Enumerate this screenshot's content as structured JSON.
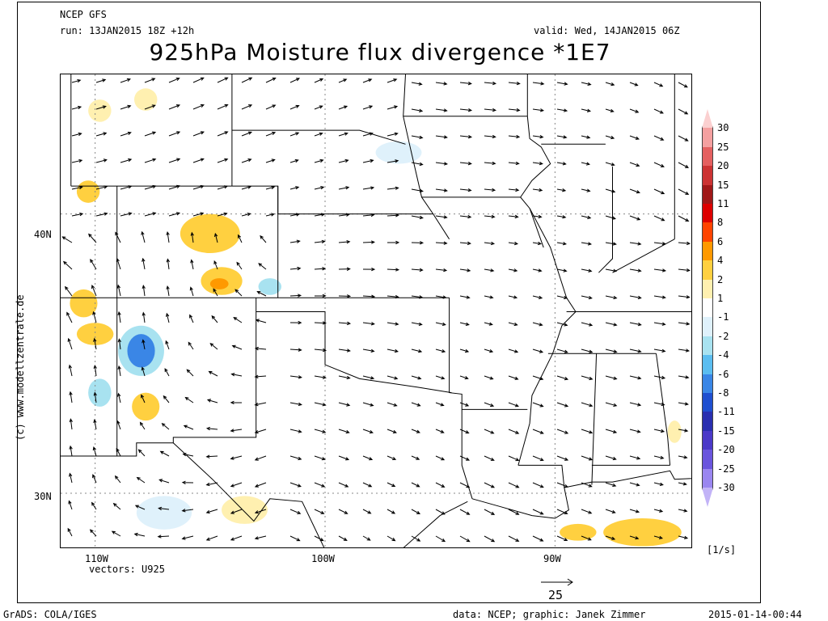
{
  "header": {
    "model": "NCEP GFS",
    "run": "run: 13JAN2015 18Z +12h",
    "valid": "valid: Wed, 14JAN2015 06Z",
    "title": "925hPa Moisture flux divergence *1E7"
  },
  "credit": "(c) www.modellzentrale.de",
  "axes": {
    "lon_labels": [
      "110W",
      "100W",
      "90W"
    ],
    "lat_labels": [
      "40N",
      "30N"
    ]
  },
  "vectors_label": "vectors: U925",
  "reference_vector": "25",
  "units": "[1/s]",
  "colorbar": {
    "labels": [
      "30",
      "25",
      "20",
      "15",
      "11",
      "8",
      "6",
      "4",
      "2",
      "1",
      "-1",
      "-2",
      "-4",
      "-6",
      "-8",
      "-11",
      "-15",
      "-20",
      "-25",
      "-30"
    ],
    "colors": [
      "#fbd0d0",
      "#f4a0a0",
      "#e46060",
      "#cc3333",
      "#a01818",
      "#dd0000",
      "#ff4400",
      "#ff9900",
      "#ffd040",
      "#fff0b0",
      "#ffffff",
      "#dff1fb",
      "#a8e2f0",
      "#5bbdf0",
      "#3a86e6",
      "#1f4fd0",
      "#2a2fb0",
      "#4b39c8",
      "#6a55dd",
      "#9a86f0",
      "#c2b3f7"
    ]
  },
  "footer": {
    "left": "GrADS: COLA/IGES",
    "center": "data: NCEP; graphic: Janek Zimmer",
    "right": "2015-01-14-00:44"
  },
  "map": {
    "projection_extent": {
      "lon_min": -111.5,
      "lon_max": -84.0,
      "lat_min": 28.0,
      "lat_max": 45.0
    },
    "grid_lon": [
      -110,
      -100,
      -90
    ],
    "grid_lat": [
      30,
      40
    ],
    "divergence_blobs": [
      {
        "lon": -105.0,
        "lat": 39.3,
        "rx": 1.3,
        "ry": 0.7,
        "color": "#ffd040"
      },
      {
        "lon": -104.5,
        "lat": 37.6,
        "rx": 0.9,
        "ry": 0.5,
        "color": "#ffd040"
      },
      {
        "lon": -104.6,
        "lat": 37.5,
        "rx": 0.4,
        "ry": 0.2,
        "color": "#ff9900"
      },
      {
        "lon": -108.0,
        "lat": 35.1,
        "rx": 0.6,
        "ry": 0.6,
        "color": "#3a86e6"
      },
      {
        "lon": -108.0,
        "lat": 35.1,
        "rx": 1.0,
        "ry": 0.9,
        "color": "#a8e2f0"
      },
      {
        "lon": -107.8,
        "lat": 33.1,
        "rx": 0.6,
        "ry": 0.5,
        "color": "#ffd040"
      },
      {
        "lon": -110.0,
        "lat": 35.7,
        "rx": 0.8,
        "ry": 0.4,
        "color": "#ffd040"
      },
      {
        "lon": -110.5,
        "lat": 36.8,
        "rx": 0.6,
        "ry": 0.5,
        "color": "#ffd040"
      },
      {
        "lon": -110.3,
        "lat": 40.8,
        "rx": 0.5,
        "ry": 0.4,
        "color": "#ffd040"
      },
      {
        "lon": -107.8,
        "lat": 44.1,
        "rx": 0.5,
        "ry": 0.4,
        "color": "#fff0b0"
      },
      {
        "lon": -109.8,
        "lat": 43.7,
        "rx": 0.5,
        "ry": 0.4,
        "color": "#fff0b0"
      },
      {
        "lon": -109.8,
        "lat": 33.6,
        "rx": 0.5,
        "ry": 0.5,
        "color": "#a8e2f0"
      },
      {
        "lon": -102.4,
        "lat": 37.4,
        "rx": 0.5,
        "ry": 0.3,
        "color": "#a8e2f0"
      },
      {
        "lon": -96.8,
        "lat": 42.2,
        "rx": 1.0,
        "ry": 0.4,
        "color": "#dff1fb"
      },
      {
        "lon": -103.5,
        "lat": 29.4,
        "rx": 1.0,
        "ry": 0.5,
        "color": "#fff0b0"
      },
      {
        "lon": -107.0,
        "lat": 29.3,
        "rx": 1.2,
        "ry": 0.6,
        "color": "#dff1fb"
      },
      {
        "lon": -86.2,
        "lat": 28.6,
        "rx": 1.7,
        "ry": 0.5,
        "color": "#ffd040"
      },
      {
        "lon": -89.0,
        "lat": 28.6,
        "rx": 0.8,
        "ry": 0.3,
        "color": "#ffd040"
      },
      {
        "lon": -84.8,
        "lat": 32.2,
        "rx": 0.3,
        "ry": 0.4,
        "color": "#fff0b0"
      }
    ]
  }
}
